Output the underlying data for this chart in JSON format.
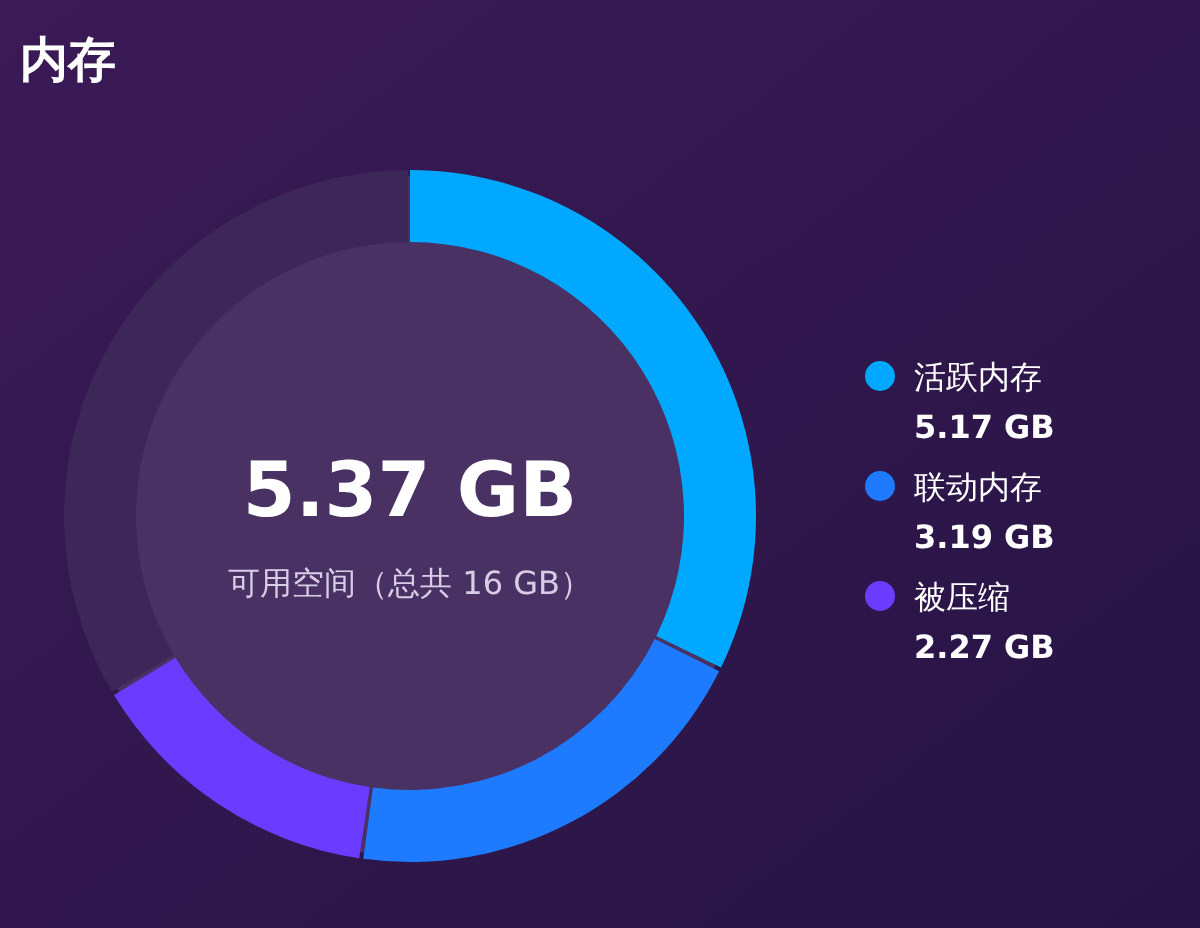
{
  "chart_data": {
    "type": "donut",
    "title": "内存",
    "categories": [
      "活跃内存",
      "联动内存",
      "被压缩",
      null
    ],
    "values": [
      5.17,
      3.19,
      2.27,
      5.37
    ],
    "colors": [
      "#00a8ff",
      "#1e7bff",
      "#6b3cff",
      "#3d2758"
    ],
    "value_labels": [
      "5.17 GB",
      "3.19 GB",
      "2.27 GB",
      null
    ],
    "legend": "right",
    "annotations": [
      "5.37 GB",
      "可用空间（总共 16 GB）"
    ]
  }
}
